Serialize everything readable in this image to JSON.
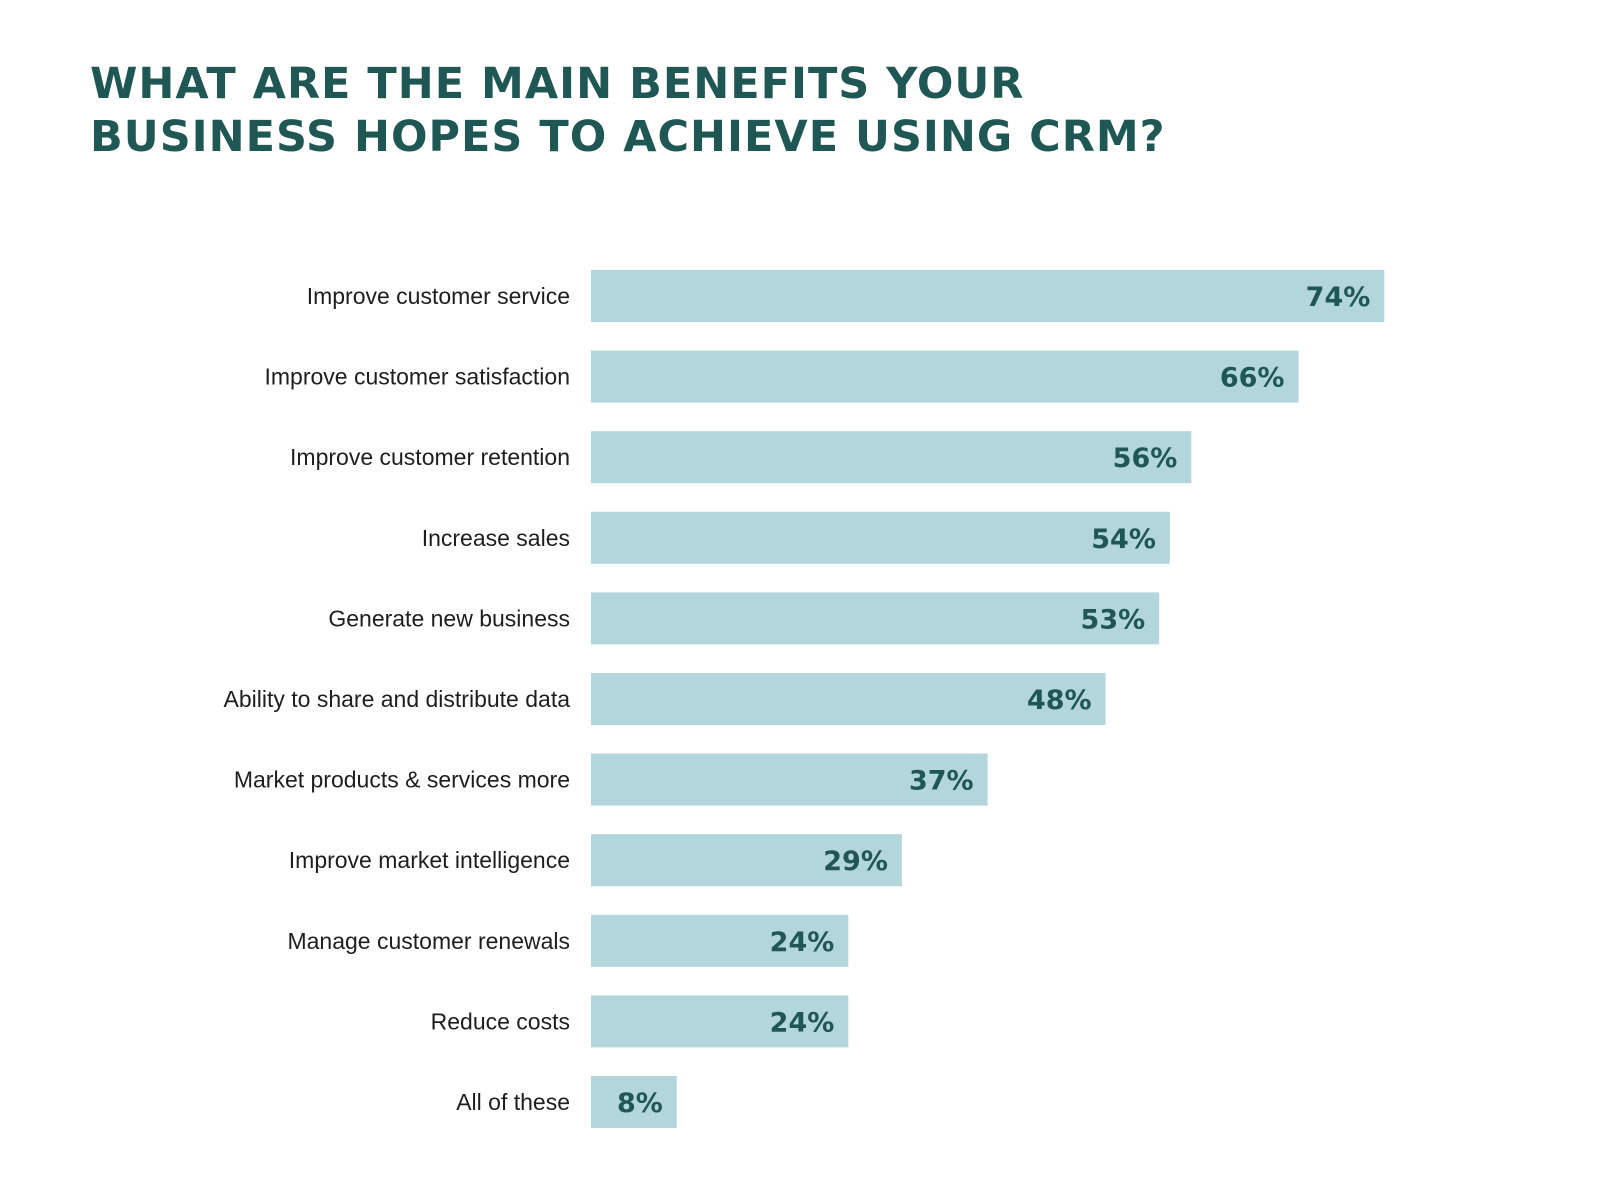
{
  "title": {
    "line1": "WHAT ARE THE MAIN BENEFITS YOUR",
    "line2": "BUSINESS HOPES TO ACHIEVE USING CRM?"
  },
  "colors": {
    "title": "#1f5754",
    "bar": "#b3d6dd",
    "value_label": "#1f5754",
    "category_label": "#1e1e1e"
  },
  "chart_data": {
    "type": "bar",
    "orientation": "horizontal",
    "title": "WHAT ARE THE MAIN BENEFITS YOUR BUSINESS HOPES TO ACHIEVE USING CRM?",
    "categories": [
      "Improve customer service",
      "Improve customer satisfaction",
      "Improve customer retention",
      "Increase sales",
      "Generate new business",
      "Ability to share and distribute data",
      "Market products & services more",
      "Improve market intelligence",
      "Manage customer renewals",
      "Reduce costs",
      "All of these"
    ],
    "values": [
      74,
      66,
      56,
      54,
      53,
      48,
      37,
      29,
      24,
      24,
      8
    ],
    "value_labels": [
      "74%",
      "66%",
      "56%",
      "54%",
      "53%",
      "48%",
      "37%",
      "29%",
      "24%",
      "24%",
      "8%"
    ],
    "unit": "%",
    "xlabel": "",
    "ylabel": "",
    "xlim": [
      0,
      100
    ],
    "grid": false,
    "legend": "none"
  }
}
